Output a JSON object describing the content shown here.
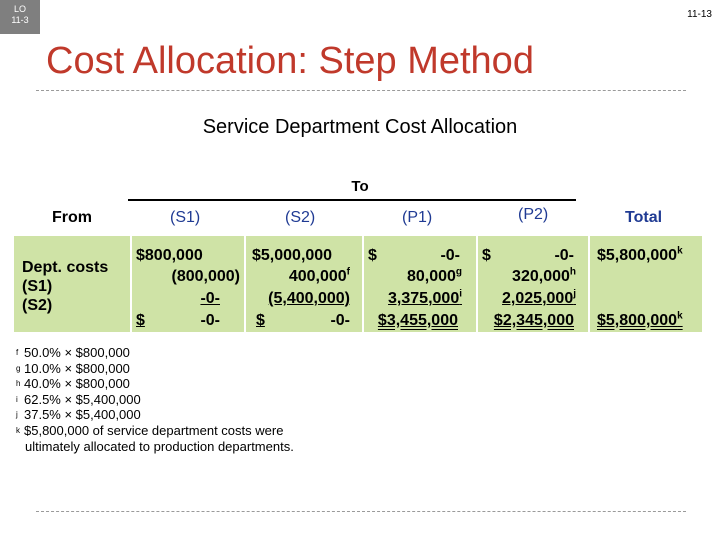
{
  "slide": {
    "lo_line1": "LO",
    "lo_line2": "11-3",
    "number": "11-13",
    "title": "Cost Allocation: Step Method",
    "subtitle": "Service Department Cost Allocation"
  },
  "table": {
    "to_label": "To",
    "from_label": "From",
    "col_s1": "(S1)",
    "col_s2": "(S2)",
    "col_p1": "(P1)",
    "col_p2": "(P2)",
    "col_total": "Total",
    "row_label_1": "Dept. costs",
    "row_label_2": "(S1)",
    "row_label_3": "(S2)",
    "s1": {
      "r1": "$800,000",
      "r2": "(800,000)",
      "r3": "-0-",
      "r4_sign": "$",
      "r4": "-0-"
    },
    "s2": {
      "r1": "$5,000,000",
      "r2": "400,000",
      "r2_sup": "f",
      "r3": "(5,400,000)",
      "r4_sign": "$",
      "r4": "-0-"
    },
    "p1": {
      "r1_sign": "$",
      "r1": "-0-",
      "r2": "80,000",
      "r2_sup": "g",
      "r3": "3,375,000",
      "r3_sup": "i",
      "r4": "$3,455,000"
    },
    "p2": {
      "r1_sign": "$",
      "r1": "-0-",
      "r2": "320,000",
      "r2_sup": "h",
      "r3": "2,025,000",
      "r3_sup": "j",
      "r4": "$2,345,000"
    },
    "total": {
      "r1": "$5,800,000",
      "r1_sup": "k",
      "r4": "$5,800,000",
      "r4_sup": "k"
    }
  },
  "notes": [
    {
      "marker": "f",
      "text": "50.0% × $800,000"
    },
    {
      "marker": "g",
      "text": "10.0% × $800,000"
    },
    {
      "marker": "h",
      "text": "40.0% × $800,000"
    },
    {
      "marker": "i",
      "text": "62.5% × $5,400,000"
    },
    {
      "marker": "j",
      "text": "37.5% × $5,400,000"
    },
    {
      "marker": "k",
      "text": "$5,800,000 of service department costs were"
    }
  ],
  "note_continuation": "ultimately allocated to production departments."
}
